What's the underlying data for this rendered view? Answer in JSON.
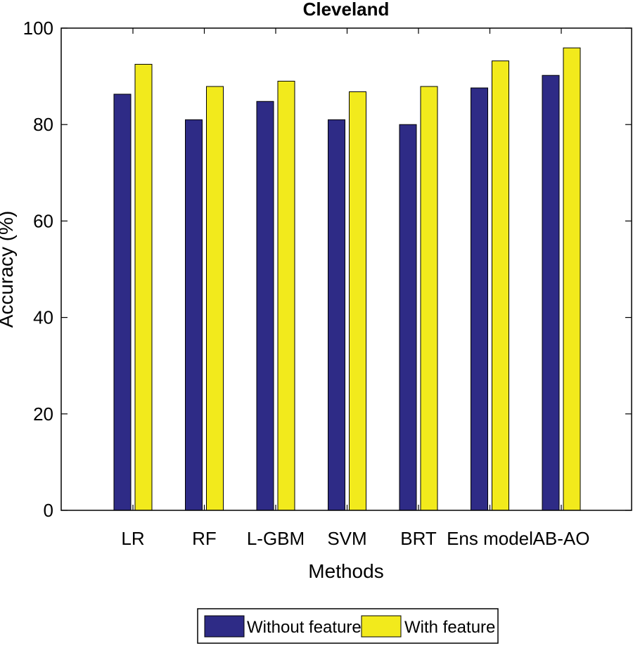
{
  "chart_data": {
    "type": "bar",
    "title": "Cleveland",
    "xlabel": "Methods",
    "ylabel": "Accuracy (%)",
    "categories": [
      "LR",
      "RF",
      "L-GBM",
      "SVM",
      "BRT",
      "Ens model",
      "AB-AO"
    ],
    "series": [
      {
        "name": "Without feature",
        "color": "#2e2b86",
        "values": [
          86.3,
          81.0,
          84.8,
          81.0,
          80.0,
          87.6,
          90.2
        ]
      },
      {
        "name": "With feature",
        "color": "#f2ea1c",
        "values": [
          92.5,
          87.9,
          89.0,
          86.8,
          87.9,
          93.2,
          95.9
        ]
      }
    ],
    "ylim": [
      0,
      100
    ],
    "yticks": [
      0,
      20,
      40,
      60,
      80,
      100
    ],
    "grid": false,
    "legend_position": "bottom"
  }
}
